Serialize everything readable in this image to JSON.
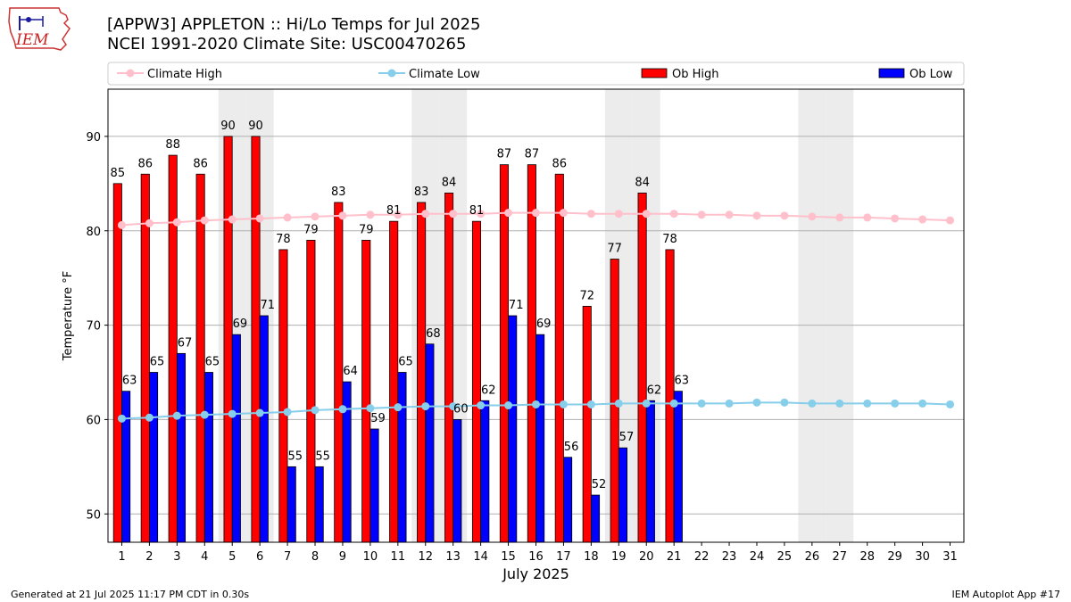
{
  "header": {
    "title": "[APPW3] APPLETON :: Hi/Lo Temps for Jul 2025",
    "subtitle": "NCEI 1991-2020 Climate Site: USC00470265",
    "logo_text": "IEM"
  },
  "footer": {
    "generated": "Generated at 21 Jul 2025 11:17 PM CDT in 0.30s",
    "app": "IEM Autoplot App #17"
  },
  "chart_data": {
    "type": "bar",
    "xlabel": "July 2025",
    "ylabel": "Temperature °F",
    "ylim": [
      47,
      95
    ],
    "yticks": [
      50,
      60,
      70,
      80,
      90
    ],
    "grid": "horizontal",
    "legend_position": "top",
    "categories": [
      "1",
      "2",
      "3",
      "4",
      "5",
      "6",
      "7",
      "8",
      "9",
      "10",
      "11",
      "12",
      "13",
      "14",
      "15",
      "16",
      "17",
      "18",
      "19",
      "20",
      "21",
      "22",
      "23",
      "24",
      "25",
      "26",
      "27",
      "28",
      "29",
      "30",
      "31"
    ],
    "weekend_days": [
      5,
      6,
      12,
      13,
      19,
      20,
      26,
      27
    ],
    "series": [
      {
        "name": "Ob High",
        "kind": "bar",
        "color": "#ff0000",
        "values": [
          85,
          86,
          88,
          86,
          90,
          90,
          78,
          79,
          83,
          79,
          81,
          83,
          84,
          81,
          87,
          87,
          86,
          72,
          77,
          84,
          78,
          null,
          null,
          null,
          null,
          null,
          null,
          null,
          null,
          null,
          null
        ]
      },
      {
        "name": "Ob Low",
        "kind": "bar",
        "color": "#0000ff",
        "values": [
          63,
          65,
          67,
          65,
          69,
          71,
          55,
          55,
          64,
          59,
          65,
          68,
          60,
          62,
          71,
          69,
          56,
          52,
          57,
          62,
          63,
          null,
          null,
          null,
          null,
          null,
          null,
          null,
          null,
          null,
          null
        ]
      },
      {
        "name": "Climate High",
        "kind": "line",
        "color": "#ffc0cb",
        "values": [
          80.6,
          80.8,
          80.9,
          81.1,
          81.2,
          81.3,
          81.4,
          81.5,
          81.6,
          81.7,
          81.7,
          81.8,
          81.8,
          81.8,
          81.9,
          81.9,
          81.9,
          81.8,
          81.8,
          81.8,
          81.8,
          81.7,
          81.7,
          81.6,
          81.6,
          81.5,
          81.4,
          81.4,
          81.3,
          81.2,
          81.1
        ]
      },
      {
        "name": "Climate Low",
        "kind": "line",
        "color": "#87ceeb",
        "values": [
          60.1,
          60.2,
          60.4,
          60.5,
          60.6,
          60.7,
          60.8,
          61.0,
          61.1,
          61.2,
          61.3,
          61.4,
          61.4,
          61.5,
          61.5,
          61.6,
          61.6,
          61.6,
          61.7,
          61.7,
          61.7,
          61.7,
          61.7,
          61.8,
          61.8,
          61.7,
          61.7,
          61.7,
          61.7,
          61.7,
          61.6
        ]
      }
    ],
    "legend": [
      "Climate High",
      "Climate Low",
      "Ob High",
      "Ob Low"
    ]
  }
}
